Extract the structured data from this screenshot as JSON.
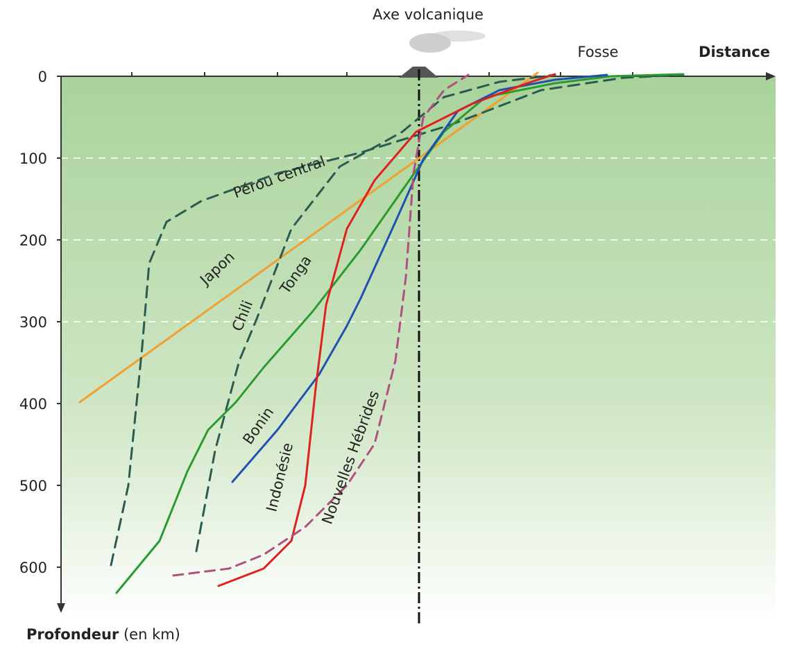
{
  "axis_title_top": "Axe volcanique",
  "trench_label": "Fosse",
  "x_axis_label": "Distance",
  "y_axis_label": {
    "bold": "Profondeur",
    "unit": "(en km)"
  },
  "y_ticks": [
    0,
    100,
    200,
    300,
    400,
    500,
    600
  ],
  "curves": {
    "perou": "Pérou central",
    "japon": "Japon",
    "chili": "Chili",
    "tonga": "Tonga",
    "bonin": "Bonin",
    "indonesie": "Indonésie",
    "hebrides": "Nouvelles Hébrides"
  }
}
